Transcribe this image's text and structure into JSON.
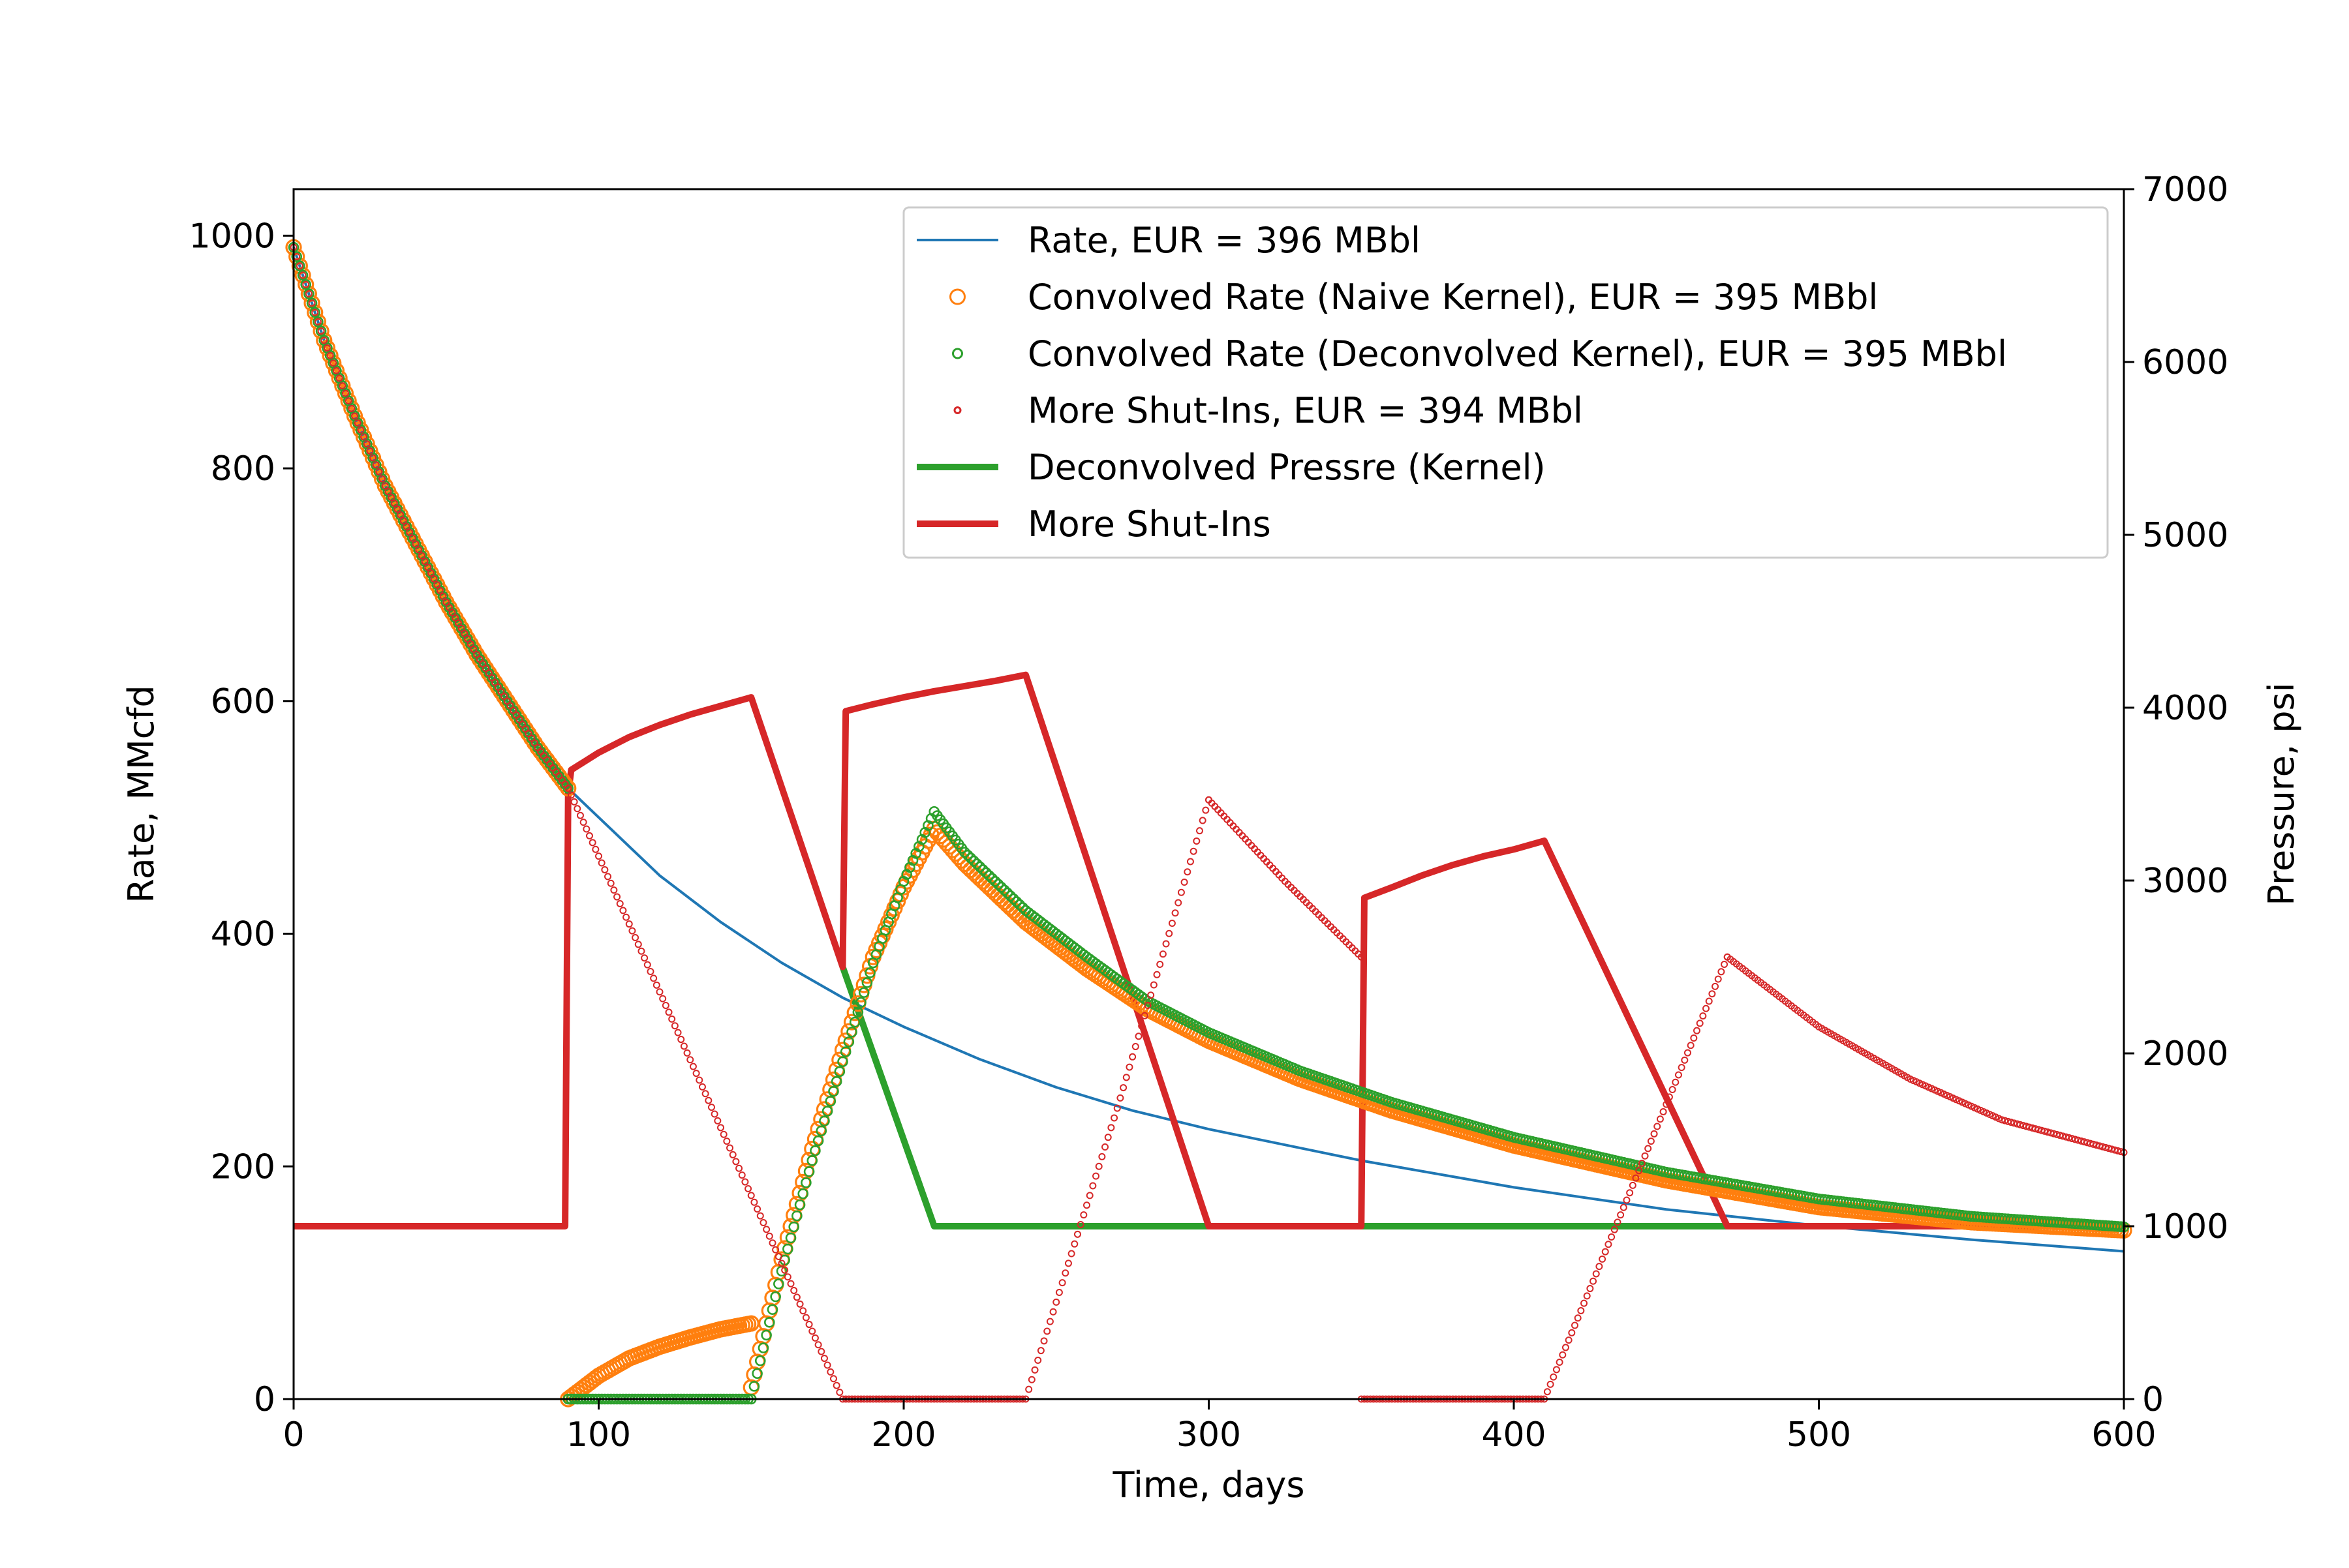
{
  "colors": {
    "blue": "#1f77b4",
    "orange": "#ff7f0e",
    "green": "#2ca02c",
    "red": "#d62728"
  },
  "chart_data": {
    "type": "line",
    "title": "",
    "xlabel": "Time, days",
    "ylabel_left": "Rate, MMcfd",
    "ylabel_right": "Pressure, psi",
    "xlim": [
      0,
      600
    ],
    "ylim_left": [
      0,
      1040
    ],
    "ylim_right": [
      0,
      7000
    ],
    "xticks": [
      0,
      100,
      200,
      300,
      400,
      500,
      600
    ],
    "yticks_left": [
      0,
      200,
      400,
      600,
      800,
      1000
    ],
    "yticks_right": [
      0,
      1000,
      2000,
      3000,
      4000,
      5000,
      6000,
      7000
    ],
    "grid": false,
    "legend_position": "top-right",
    "series": [
      {
        "name": "Rate, EUR = 396 MBbl",
        "axis": "left",
        "style": "line-thin",
        "color": "#1f77b4",
        "x": [
          0,
          10,
          20,
          30,
          40,
          50,
          60,
          70,
          80,
          90,
          100,
          120,
          140,
          160,
          180,
          200,
          225,
          250,
          275,
          300,
          350,
          400,
          450,
          500,
          550,
          600
        ],
        "y": [
          990,
          910,
          845,
          785,
          735,
          685,
          640,
          600,
          560,
          525,
          500,
          450,
          410,
          375,
          345,
          320,
          292,
          268,
          248,
          232,
          205,
          182,
          163,
          149,
          137,
          127
        ]
      },
      {
        "name": "Convolved Rate (Naive Kernel), EUR = 395 MBbl",
        "axis": "left",
        "style": "marker-large-open",
        "color": "#ff7f0e",
        "x": [
          0,
          10,
          20,
          30,
          40,
          50,
          60,
          70,
          80,
          90,
          90,
          100,
          110,
          120,
          130,
          140,
          150,
          150,
          160,
          170,
          180,
          190,
          200,
          210,
          220,
          240,
          260,
          280,
          300,
          330,
          360,
          400,
          450,
          500,
          550,
          600
        ],
        "y": [
          990,
          910,
          845,
          785,
          735,
          685,
          640,
          600,
          560,
          525,
          0,
          20,
          35,
          45,
          53,
          60,
          65,
          10,
          120,
          215,
          300,
          380,
          440,
          490,
          460,
          410,
          370,
          335,
          308,
          275,
          248,
          218,
          188,
          165,
          152,
          145
        ]
      },
      {
        "name": "Convolved Rate (Deconvolved Kernel), EUR = 395 MBbl",
        "axis": "left",
        "style": "marker-medium-open",
        "color": "#2ca02c",
        "x": [
          0,
          10,
          20,
          30,
          40,
          50,
          60,
          70,
          80,
          90,
          90,
          100,
          120,
          140,
          150,
          160,
          170,
          180,
          190,
          200,
          210,
          220,
          240,
          260,
          280,
          300,
          330,
          360,
          400,
          450,
          500,
          550,
          600
        ],
        "y": [
          990,
          910,
          845,
          785,
          735,
          685,
          640,
          600,
          560,
          525,
          0,
          0,
          0,
          0,
          0,
          110,
          205,
          290,
          375,
          445,
          505,
          470,
          420,
          380,
          342,
          315,
          282,
          255,
          225,
          195,
          172,
          157,
          148
        ]
      },
      {
        "name": "More Shut-Ins, EUR = 394 MBbl",
        "axis": "left",
        "style": "marker-small-open",
        "color": "#d62728",
        "x": [
          0,
          10,
          20,
          30,
          40,
          50,
          60,
          70,
          80,
          90,
          180,
          240,
          270,
          300,
          300,
          325,
          350,
          350,
          410,
          440,
          470,
          470,
          500,
          530,
          560,
          600
        ],
        "y": [
          990,
          910,
          845,
          785,
          735,
          685,
          640,
          600,
          560,
          525,
          0,
          0,
          250,
          515,
          515,
          445,
          380,
          0,
          0,
          190,
          380,
          380,
          320,
          275,
          240,
          212
        ]
      },
      {
        "name": "Deconvolved Pressre (Kernel)",
        "axis": "right",
        "style": "line-thick",
        "color": "#2ca02c",
        "x": [
          180,
          210,
          220,
          600
        ],
        "y": [
          2500,
          1000,
          1000,
          1000
        ]
      },
      {
        "name": "More Shut-Ins",
        "axis": "right",
        "style": "line-thick",
        "color": "#d62728",
        "x": [
          0,
          89,
          90,
          91,
          100,
          110,
          120,
          130,
          140,
          150,
          180,
          181,
          190,
          200,
          210,
          220,
          230,
          240,
          300,
          350,
          351,
          360,
          370,
          380,
          390,
          400,
          410,
          470,
          480,
          500,
          550,
          600
        ],
        "y": [
          1000,
          1000,
          3500,
          3640,
          3740,
          3830,
          3900,
          3960,
          4010,
          4060,
          2500,
          3980,
          4020,
          4060,
          4095,
          4125,
          4155,
          4190,
          1000,
          1000,
          2900,
          2960,
          3030,
          3090,
          3140,
          3180,
          3230,
          1000,
          1000,
          1000,
          1000,
          1000
        ]
      }
    ]
  }
}
